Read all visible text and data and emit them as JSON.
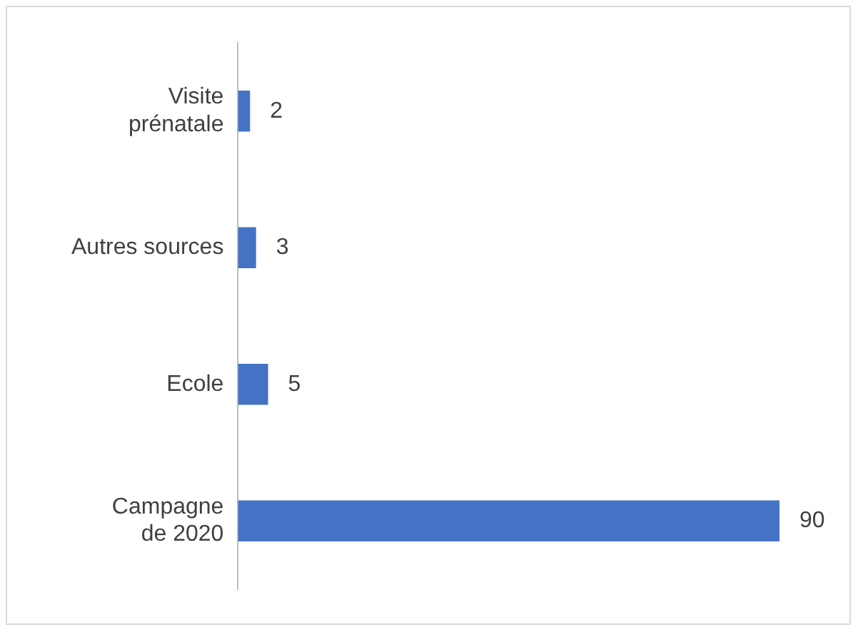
{
  "chart_data": {
    "type": "bar",
    "orientation": "horizontal",
    "categories": [
      "Visite prénatale",
      "Autres sources",
      "Ecole",
      "Campagne de 2020"
    ],
    "values": [
      2,
      3,
      5,
      90
    ],
    "color": "#4472c4",
    "data_labels": true
  }
}
